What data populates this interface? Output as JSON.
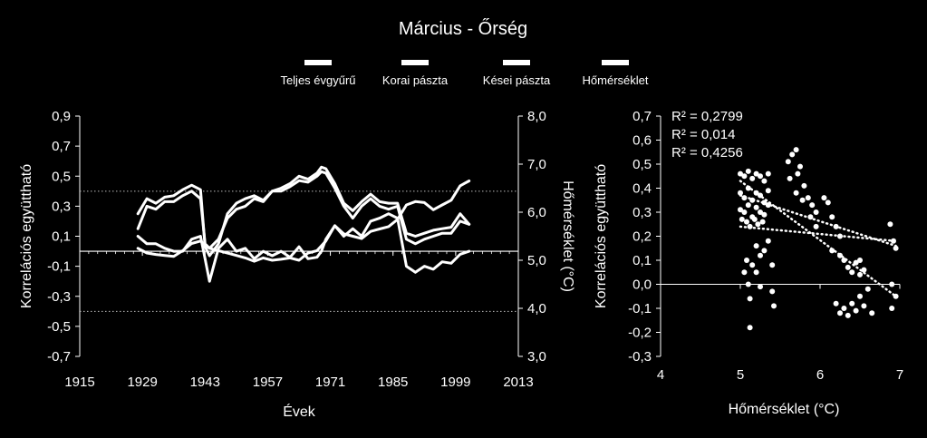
{
  "chart_data": [
    {
      "type": "line",
      "title": "Március - Őrség",
      "xlabel": "Évek",
      "ylabel": "Korrelációs együttható",
      "y2label": "Hőmérséklet (°C)",
      "xlim": [
        1915,
        2013
      ],
      "ylim": [
        -0.7,
        0.9
      ],
      "y2lim": [
        3.0,
        8.0
      ],
      "x_ticks": [
        "1915",
        "1929",
        "1943",
        "1957",
        "1971",
        "1985",
        "1999",
        "2013"
      ],
      "y_ticks": [
        "0,9",
        "0,7",
        "0,5",
        "0,3",
        "0,1",
        "-0,1",
        "-0,3",
        "-0,5",
        "-0,7"
      ],
      "y2_ticks": [
        "8,0",
        "7,0",
        "6,0",
        "5,0",
        "4,0",
        "3,0"
      ],
      "significance_levels": [
        0.4,
        -0.4
      ],
      "reference_line": 0,
      "legend": [
        "Teljes évgyűrű",
        "Korai pászta",
        "Kései pászta",
        "Hőmérséklet"
      ],
      "legend_position": "top",
      "colors": {
        "background": "#000000",
        "series": "#ffffff"
      },
      "series": [
        {
          "name": "Teljes évgyűrű",
          "axis": "left",
          "x": [
            1928,
            1930,
            1932,
            1934,
            1936,
            1938,
            1940,
            1942,
            1943,
            1944,
            1946,
            1948,
            1950,
            1952,
            1954,
            1956,
            1958,
            1960,
            1962,
            1964,
            1966,
            1968,
            1969,
            1970,
            1972,
            1974,
            1976,
            1978,
            1980,
            1982,
            1984,
            1986,
            1988,
            1990,
            1992,
            1994,
            1996,
            1998,
            2000,
            2002
          ],
          "y": [
            0.15,
            0.3,
            0.28,
            0.33,
            0.33,
            0.37,
            0.4,
            0.35,
            0.05,
            0.02,
            0.08,
            0.22,
            0.28,
            0.3,
            0.35,
            0.33,
            0.4,
            0.4,
            0.43,
            0.47,
            0.46,
            0.5,
            0.53,
            0.52,
            0.42,
            0.3,
            0.22,
            0.3,
            0.35,
            0.3,
            0.28,
            0.3,
            0.08,
            0.05,
            0.08,
            0.1,
            0.12,
            0.12,
            0.2,
            0.18
          ]
        },
        {
          "name": "Korai pászta",
          "axis": "left",
          "x": [
            1928,
            1930,
            1932,
            1934,
            1936,
            1938,
            1940,
            1942,
            1943,
            1944,
            1946,
            1948,
            1950,
            1952,
            1954,
            1956,
            1958,
            1960,
            1962,
            1964,
            1966,
            1968,
            1969,
            1970,
            1972,
            1974,
            1976,
            1978,
            1980,
            1982,
            1984,
            1986,
            1988,
            1990,
            1992,
            1994,
            1996,
            1998,
            2000,
            2002
          ],
          "y": [
            0.25,
            0.35,
            0.32,
            0.36,
            0.37,
            0.41,
            0.44,
            0.41,
            0.03,
            -0.03,
            0.05,
            0.25,
            0.32,
            0.35,
            0.37,
            0.34,
            0.4,
            0.42,
            0.45,
            0.5,
            0.48,
            0.52,
            0.56,
            0.55,
            0.45,
            0.32,
            0.27,
            0.33,
            0.38,
            0.33,
            0.32,
            0.32,
            0.12,
            0.1,
            0.12,
            0.14,
            0.15,
            0.16,
            0.25,
            0.18
          ]
        },
        {
          "name": "Kései pászta",
          "axis": "left",
          "x": [
            1928,
            1930,
            1932,
            1934,
            1936,
            1938,
            1940,
            1942,
            1943,
            1944,
            1946,
            1948,
            1950,
            1952,
            1954,
            1956,
            1958,
            1960,
            1962,
            1964,
            1966,
            1968,
            1969,
            1970,
            1972,
            1974,
            1976,
            1978,
            1980,
            1982,
            1984,
            1986,
            1988,
            1990,
            1992,
            1994,
            1996,
            1998,
            2000,
            2002
          ],
          "y": [
            0.1,
            0.05,
            0.05,
            0.02,
            0.0,
            0.0,
            0.08,
            0.1,
            -0.05,
            -0.2,
            0.02,
            0.08,
            0.0,
            0.02,
            -0.05,
            0.0,
            -0.03,
            0.0,
            -0.04,
            0.03,
            -0.05,
            -0.04,
            0.0,
            0.08,
            0.17,
            0.1,
            0.15,
            0.1,
            0.2,
            0.22,
            0.25,
            0.22,
            -0.1,
            -0.14,
            -0.1,
            -0.12,
            -0.07,
            -0.08,
            -0.02,
            0.0
          ]
        },
        {
          "name": "Hőmérséklet",
          "axis": "right",
          "x": [
            1928,
            1930,
            1932,
            1934,
            1936,
            1938,
            1940,
            1942,
            1944,
            1946,
            1948,
            1950,
            1952,
            1954,
            1956,
            1958,
            1960,
            1962,
            1964,
            1966,
            1968,
            1970,
            1972,
            1974,
            1976,
            1978,
            1980,
            1982,
            1984,
            1986,
            1988,
            1990,
            1992,
            1994,
            1996,
            1998,
            2000,
            2001,
            2002
          ],
          "y": [
            5.25,
            5.15,
            5.12,
            5.1,
            5.08,
            5.2,
            5.35,
            5.4,
            5.25,
            5.2,
            5.15,
            5.1,
            5.05,
            4.98,
            5.05,
            5.0,
            5.02,
            5.05,
            5.0,
            5.15,
            5.2,
            5.4,
            5.72,
            5.55,
            5.5,
            5.45,
            5.6,
            5.65,
            5.7,
            5.85,
            6.15,
            6.22,
            6.2,
            6.05,
            6.15,
            6.25,
            6.55,
            6.6,
            6.65
          ]
        }
      ]
    },
    {
      "type": "scatter",
      "xlabel": "Hőmérséklet (°C)",
      "ylabel": "Korrelációs együttható",
      "xlim": [
        4,
        7
      ],
      "ylim": [
        -0.3,
        0.7
      ],
      "x_ticks": [
        "4",
        "5",
        "6",
        "7"
      ],
      "y_ticks": [
        "0,7",
        "0,6",
        "0,5",
        "0,4",
        "0,3",
        "0,2",
        "0,1",
        "0,0",
        "-0,1",
        "-0,2",
        "-0,3"
      ],
      "annotations": [
        "R² = 0,2799",
        "R² = 0,014",
        "R² = 0,4256"
      ],
      "trendlines": [
        {
          "x": [
            5.0,
            6.95
          ],
          "y": [
            0.37,
            0.16
          ]
        },
        {
          "x": [
            5.0,
            6.95
          ],
          "y": [
            0.24,
            0.18
          ]
        },
        {
          "x": [
            5.0,
            6.95
          ],
          "y": [
            0.43,
            -0.05
          ]
        }
      ],
      "points": [
        [
          5.0,
          0.46
        ],
        [
          5.05,
          0.45
        ],
        [
          5.1,
          0.47
        ],
        [
          5.15,
          0.44
        ],
        [
          5.2,
          0.46
        ],
        [
          5.25,
          0.45
        ],
        [
          5.3,
          0.43
        ],
        [
          5.35,
          0.46
        ],
        [
          5.0,
          0.38
        ],
        [
          5.05,
          0.36
        ],
        [
          5.1,
          0.4
        ],
        [
          5.15,
          0.35
        ],
        [
          5.2,
          0.38
        ],
        [
          5.25,
          0.37
        ],
        [
          5.3,
          0.34
        ],
        [
          5.35,
          0.39
        ],
        [
          5.0,
          0.31
        ],
        [
          5.05,
          0.3
        ],
        [
          5.1,
          0.33
        ],
        [
          5.15,
          0.28
        ],
        [
          5.2,
          0.32
        ],
        [
          5.25,
          0.3
        ],
        [
          5.3,
          0.29
        ],
        [
          5.35,
          0.33
        ],
        [
          5.02,
          0.27
        ],
        [
          5.08,
          0.26
        ],
        [
          5.12,
          0.24
        ],
        [
          5.18,
          0.27
        ],
        [
          5.22,
          0.25
        ],
        [
          5.28,
          0.26
        ],
        [
          5.05,
          0.05
        ],
        [
          5.08,
          0.1
        ],
        [
          5.1,
          0.0
        ],
        [
          5.12,
          -0.06
        ],
        [
          5.12,
          -0.18
        ],
        [
          5.15,
          0.08
        ],
        [
          5.2,
          0.16
        ],
        [
          5.25,
          0.12
        ],
        [
          5.3,
          0.14
        ],
        [
          5.35,
          0.18
        ],
        [
          5.4,
          0.08
        ],
        [
          5.4,
          -0.03
        ],
        [
          5.42,
          -0.09
        ],
        [
          5.2,
          0.05
        ],
        [
          5.25,
          -0.01
        ],
        [
          5.6,
          0.51
        ],
        [
          5.65,
          0.54
        ],
        [
          5.7,
          0.56
        ],
        [
          5.75,
          0.49
        ],
        [
          5.62,
          0.44
        ],
        [
          5.72,
          0.46
        ],
        [
          5.8,
          0.41
        ],
        [
          5.85,
          0.36
        ],
        [
          5.9,
          0.33
        ],
        [
          5.95,
          0.3
        ],
        [
          5.7,
          0.38
        ],
        [
          5.78,
          0.35
        ],
        [
          5.88,
          0.28
        ],
        [
          5.95,
          0.24
        ],
        [
          6.05,
          0.36
        ],
        [
          6.1,
          0.34
        ],
        [
          6.15,
          0.28
        ],
        [
          6.2,
          0.24
        ],
        [
          6.25,
          0.2
        ],
        [
          6.15,
          0.14
        ],
        [
          6.25,
          0.12
        ],
        [
          6.3,
          0.1
        ],
        [
          6.35,
          0.07
        ],
        [
          6.4,
          0.05
        ],
        [
          6.45,
          0.09
        ],
        [
          6.5,
          0.04
        ],
        [
          6.5,
          0.1
        ],
        [
          6.55,
          0.06
        ],
        [
          6.2,
          -0.08
        ],
        [
          6.25,
          -0.12
        ],
        [
          6.3,
          -0.1
        ],
        [
          6.35,
          -0.13
        ],
        [
          6.4,
          -0.08
        ],
        [
          6.45,
          -0.11
        ],
        [
          6.5,
          -0.05
        ],
        [
          6.55,
          -0.09
        ],
        [
          6.6,
          -0.02
        ],
        [
          6.65,
          -0.12
        ],
        [
          6.88,
          0.25
        ],
        [
          6.92,
          0.18
        ],
        [
          6.95,
          0.15
        ],
        [
          6.9,
          0.0
        ],
        [
          6.95,
          -0.05
        ],
        [
          6.9,
          -0.1
        ]
      ]
    }
  ]
}
